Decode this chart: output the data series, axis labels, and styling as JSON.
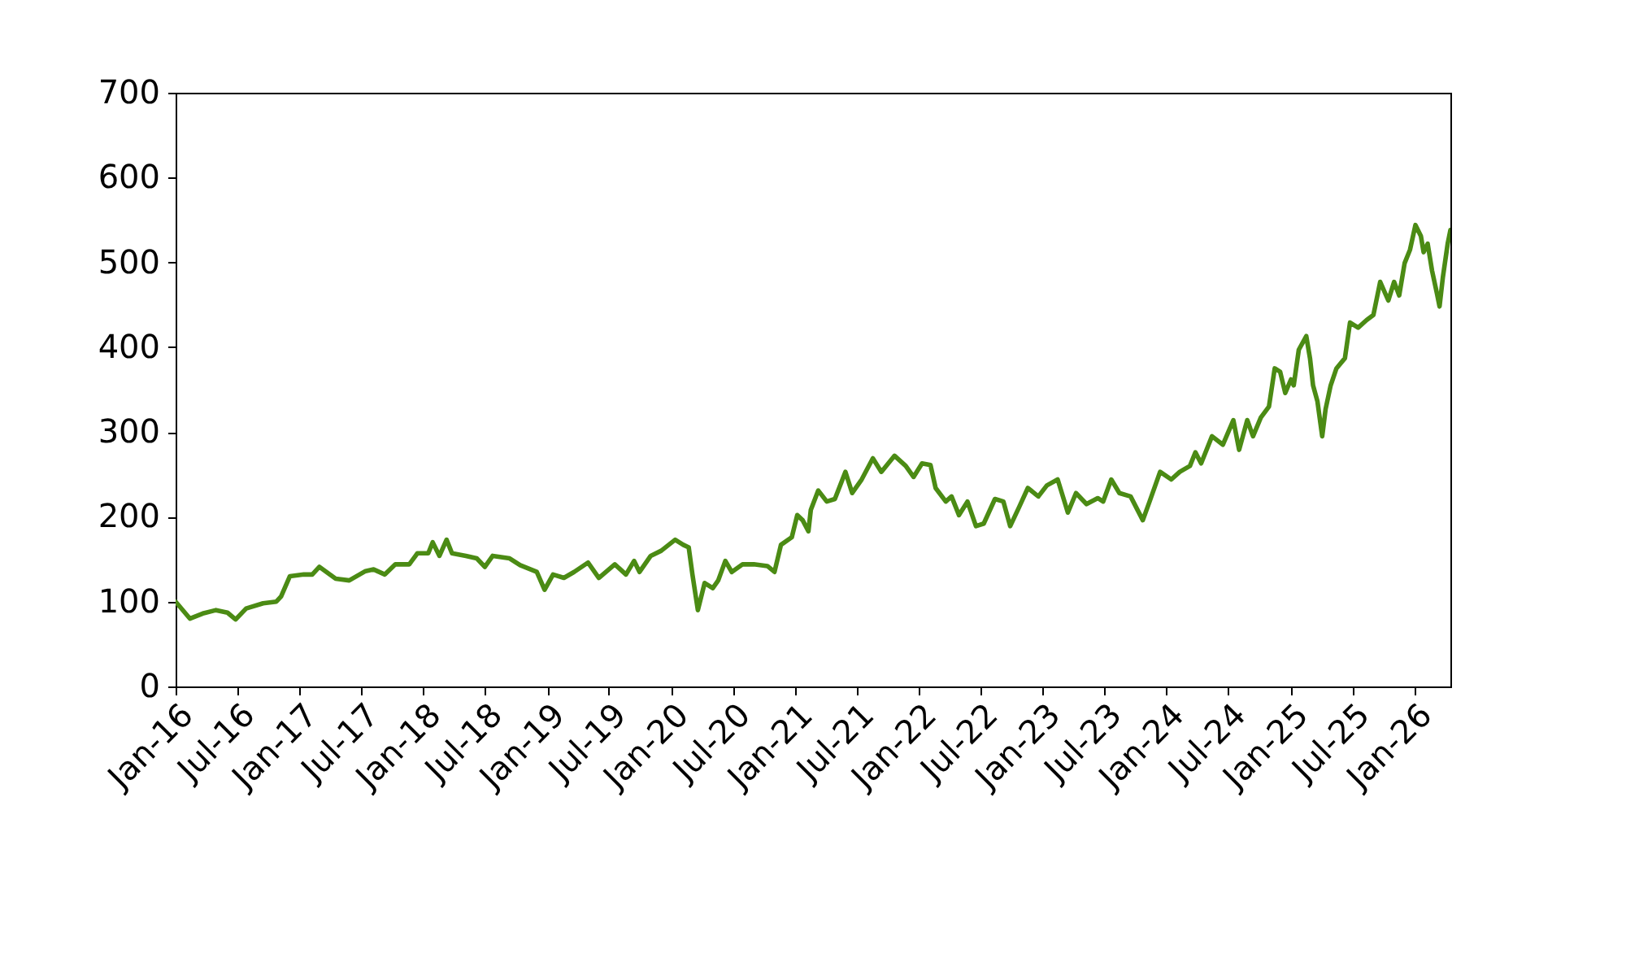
{
  "chart_data": {
    "type": "line",
    "color": "#4b8b14",
    "line_style": "solid",
    "x": [
      "2016-01-01",
      "2016-02-12",
      "2016-03-21",
      "2016-04-29",
      "2016-06-02",
      "2016-06-26",
      "2016-07-27",
      "2016-09-15",
      "2016-10-24",
      "2016-11-07",
      "2016-12-03",
      "2017-01-13",
      "2017-02-07",
      "2017-02-28",
      "2017-04-17",
      "2017-05-27",
      "2017-07-14",
      "2017-08-07",
      "2017-09-09",
      "2017-10-10",
      "2017-11-20",
      "2017-12-14",
      "2018-01-15",
      "2018-01-28",
      "2018-02-17",
      "2018-03-10",
      "2018-03-26",
      "2018-05-06",
      "2018-06-07",
      "2018-07-01",
      "2018-07-24",
      "2018-09-12",
      "2018-10-13",
      "2018-12-01",
      "2018-12-24",
      "2019-01-18",
      "2019-02-19",
      "2019-03-21",
      "2019-05-01",
      "2019-06-02",
      "2019-07-19",
      "2019-08-21",
      "2019-09-14",
      "2019-09-30",
      "2019-11-02",
      "2019-12-03",
      "2020-01-13",
      "2020-02-06",
      "2020-02-22",
      "2020-03-04",
      "2020-03-20",
      "2020-04-09",
      "2020-05-03",
      "2020-05-19",
      "2020-06-09",
      "2020-06-28",
      "2020-07-30",
      "2020-09-01",
      "2020-10-11",
      "2020-11-01",
      "2020-11-20",
      "2020-12-22",
      "2021-01-07",
      "2021-01-23",
      "2021-02-09",
      "2021-02-16",
      "2021-03-10",
      "2021-04-04",
      "2021-04-28",
      "2021-05-29",
      "2021-06-18",
      "2021-07-16",
      "2021-08-18",
      "2021-09-12",
      "2021-10-21",
      "2021-11-23",
      "2021-12-16",
      "2022-01-10",
      "2022-02-04",
      "2022-02-19",
      "2022-03-21",
      "2022-04-07",
      "2022-04-29",
      "2022-05-24",
      "2022-06-18",
      "2022-07-11",
      "2022-08-13",
      "2022-09-07",
      "2022-09-27",
      "2022-10-24",
      "2022-11-18",
      "2022-12-19",
      "2023-01-13",
      "2023-02-14",
      "2023-03-16",
      "2023-04-09",
      "2023-05-10",
      "2023-06-12",
      "2023-06-28",
      "2023-07-22",
      "2023-08-15",
      "2023-09-17",
      "2023-10-23",
      "2023-11-12",
      "2023-12-13",
      "2024-01-15",
      "2024-02-09",
      "2024-03-10",
      "2024-03-26",
      "2024-04-12",
      "2024-05-14",
      "2024-06-15",
      "2024-07-16",
      "2024-08-02",
      "2024-08-26",
      "2024-09-12",
      "2024-10-05",
      "2024-10-29",
      "2024-11-15",
      "2024-12-01",
      "2024-12-16",
      "2025-01-02",
      "2025-01-10",
      "2025-01-25",
      "2025-02-16",
      "2025-02-27",
      "2025-03-08",
      "2025-03-21",
      "2025-04-04",
      "2025-04-14",
      "2025-04-29",
      "2025-05-16",
      "2025-06-10",
      "2025-06-25",
      "2025-07-19",
      "2025-08-13",
      "2025-09-02",
      "2025-09-22",
      "2025-10-16",
      "2025-11-02",
      "2025-11-17",
      "2025-12-03",
      "2025-12-19",
      "2026-01-04",
      "2026-01-20",
      "2026-01-28",
      "2026-02-09",
      "2026-02-22",
      "2026-03-08",
      "2026-03-16",
      "2026-03-26",
      "2026-04-09",
      "2026-04-17"
    ],
    "values": [
      100,
      80,
      86,
      90,
      87,
      79,
      92,
      98,
      100,
      106,
      130,
      132,
      132,
      141,
      127,
      125,
      136,
      138,
      132,
      144,
      144,
      157,
      157,
      170,
      154,
      173,
      157,
      154,
      151,
      141,
      154,
      151,
      143,
      135,
      114,
      132,
      128,
      135,
      146,
      128,
      144,
      132,
      148,
      135,
      154,
      160,
      173,
      167,
      164,
      132,
      90,
      122,
      116,
      125,
      148,
      135,
      144,
      144,
      142,
      135,
      167,
      176,
      202,
      196,
      183,
      208,
      231,
      218,
      221,
      253,
      228,
      244,
      269,
      253,
      272,
      260,
      247,
      263,
      261,
      234,
      218,
      224,
      202,
      218,
      189,
      192,
      221,
      218,
      189,
      212,
      234,
      224,
      237,
      244,
      205,
      228,
      215,
      222,
      218,
      244,
      228,
      224,
      196,
      218,
      253,
      244,
      253,
      260,
      276,
      263,
      295,
      285,
      314,
      279,
      314,
      295,
      317,
      330,
      375,
      371,
      346,
      362,
      355,
      397,
      413,
      387,
      355,
      336,
      295,
      327,
      355,
      375,
      387,
      429,
      423,
      432,
      438,
      477,
      455,
      477,
      461,
      499,
      515,
      544,
      531,
      512,
      522,
      490,
      464,
      448,
      483,
      522,
      538
    ],
    "xlim": [
      "2016-01-01",
      "2026-04-17"
    ],
    "xticks": [
      {
        "value": "2016-01-01",
        "label": "Jan-16"
      },
      {
        "value": "2016-07-01",
        "label": "Jul-16"
      },
      {
        "value": "2017-01-01",
        "label": "Jan-17"
      },
      {
        "value": "2017-07-01",
        "label": "Jul-17"
      },
      {
        "value": "2018-01-01",
        "label": "Jan-18"
      },
      {
        "value": "2018-07-01",
        "label": "Jul-18"
      },
      {
        "value": "2019-01-01",
        "label": "Jan-19"
      },
      {
        "value": "2019-07-01",
        "label": "Jul-19"
      },
      {
        "value": "2020-01-01",
        "label": "Jan-20"
      },
      {
        "value": "2020-07-01",
        "label": "Jul-20"
      },
      {
        "value": "2021-01-01",
        "label": "Jan-21"
      },
      {
        "value": "2021-07-01",
        "label": "Jul-21"
      },
      {
        "value": "2022-01-01",
        "label": "Jan-22"
      },
      {
        "value": "2022-07-01",
        "label": "Jul-22"
      },
      {
        "value": "2023-01-01",
        "label": "Jan-23"
      },
      {
        "value": "2023-07-01",
        "label": "Jul-23"
      },
      {
        "value": "2024-01-01",
        "label": "Jan-24"
      },
      {
        "value": "2024-07-01",
        "label": "Jul-24"
      },
      {
        "value": "2025-01-01",
        "label": "Jan-25"
      },
      {
        "value": "2025-07-01",
        "label": "Jul-25"
      },
      {
        "value": "2026-01-01",
        "label": "Jan-26"
      }
    ],
    "ylim": [
      0,
      700
    ],
    "yticks": [
      0,
      100,
      200,
      300,
      400,
      500,
      600,
      700
    ]
  }
}
